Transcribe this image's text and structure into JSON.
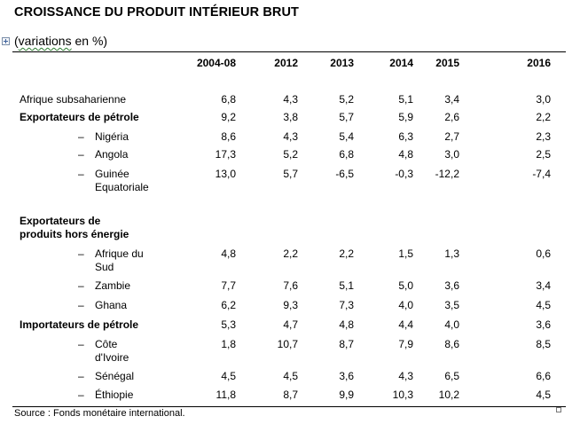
{
  "title": "CROISSANCE DU PRODUIT INTÉRIEUR BRUT",
  "subtitle_prefix": "(",
  "subtitle_word": "variations",
  "subtitle_suffix": " en %)",
  "columns": [
    "2004-08",
    "2012",
    "2013",
    "2014",
    "2015",
    "2016"
  ],
  "dash": "–",
  "rows": [
    {
      "label": [
        "Afrique subsaharienne"
      ],
      "bold": false,
      "sub": false,
      "values": [
        "6,8",
        "4,3",
        "5,2",
        "5,1",
        "3,4",
        "3,0"
      ]
    },
    {
      "label": [
        "Exportateurs  de pétrole"
      ],
      "bold": true,
      "sub": false,
      "values": [
        "9,2",
        "3,8",
        "5,7",
        "5,9",
        "2,6",
        "2,2"
      ]
    },
    {
      "label": [
        "Nigéria"
      ],
      "bold": false,
      "sub": true,
      "values": [
        "8,6",
        "4,3",
        "5,4",
        "6,3",
        "2,7",
        "2,3"
      ]
    },
    {
      "label": [
        "Angola"
      ],
      "bold": false,
      "sub": true,
      "values": [
        "17,3",
        "5,2",
        "6,8",
        "4,8",
        "3,0",
        "2,5"
      ]
    },
    {
      "label": [
        "Guinée",
        "Equatoriale"
      ],
      "bold": false,
      "sub": true,
      "values": [
        "13,0",
        "5,7",
        "-6,5",
        "-0,3",
        "-12,2",
        "-7,4"
      ]
    },
    {
      "label": [
        "Exportateurs  de",
        "produits hors énergie"
      ],
      "bold": true,
      "sub": false,
      "values": []
    },
    {
      "label": [
        "Afrique du",
        "Sud"
      ],
      "bold": false,
      "sub": true,
      "values": [
        "4,8",
        "2,2",
        "2,2",
        "1,5",
        "1,3",
        "0,6"
      ]
    },
    {
      "label": [
        "Zambie"
      ],
      "bold": false,
      "sub": true,
      "values": [
        "7,7",
        "7,6",
        "5,1",
        "5,0",
        "3,6",
        "3,4"
      ]
    },
    {
      "label": [
        "Ghana"
      ],
      "bold": false,
      "sub": true,
      "values": [
        "6,2",
        "9,3",
        "7,3",
        "4,0",
        "3,5",
        "4,5"
      ]
    },
    {
      "label": [
        "Importateurs de pétrole"
      ],
      "bold": true,
      "sub": false,
      "values": [
        "5,3",
        "4,7",
        "4,8",
        "4,4",
        "4,0",
        "3,6"
      ]
    },
    {
      "label": [
        "Côte",
        "d'Ivoire"
      ],
      "bold": false,
      "sub": true,
      "values": [
        "1,8",
        "10,7",
        "8,7",
        "7,9",
        "8,6",
        "8,5"
      ]
    },
    {
      "label": [
        "Sénégal"
      ],
      "bold": false,
      "sub": true,
      "values": [
        "4,5",
        "4,5",
        "3,6",
        "4,3",
        "6,5",
        "6,6"
      ]
    },
    {
      "label": [
        "Éthiopie"
      ],
      "bold": false,
      "sub": true,
      "values": [
        "11,8",
        "8,7",
        "9,9",
        "10,3",
        "10,2",
        "4,5"
      ]
    }
  ],
  "source": "Source : Fonds monétaire international."
}
